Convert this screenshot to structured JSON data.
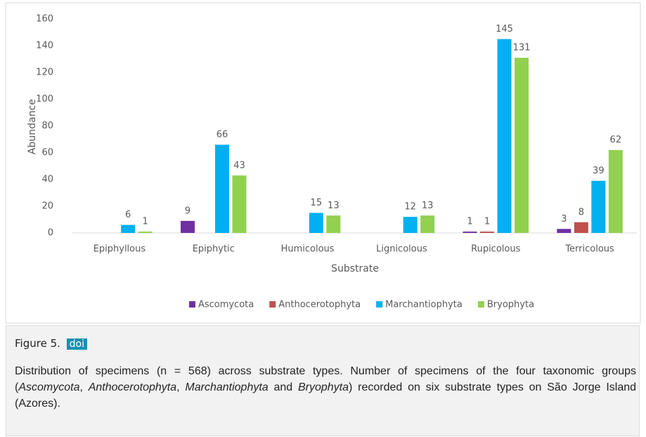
{
  "chart_data": {
    "type": "bar",
    "xlabel": "Substrate",
    "ylabel": "Abundance",
    "categories": [
      "Epiphyllous",
      "Epiphytic",
      "Humicolous",
      "Lignicolous",
      "Rupicolous",
      "Terricolous"
    ],
    "series": [
      {
        "name": "Ascomycota",
        "color": "#7030a0",
        "values": [
          null,
          9,
          null,
          null,
          1,
          3
        ]
      },
      {
        "name": "Anthocerotophyta",
        "color": "#c0504d",
        "values": [
          null,
          null,
          null,
          null,
          1,
          8
        ]
      },
      {
        "name": "Marchantiophyta",
        "color": "#00b0f0",
        "values": [
          6,
          66,
          15,
          12,
          145,
          39
        ]
      },
      {
        "name": "Bryophyta",
        "color": "#92d050",
        "values": [
          1,
          43,
          13,
          13,
          131,
          62
        ]
      }
    ],
    "ylim": [
      0,
      160
    ],
    "yticks": [
      0,
      20,
      40,
      60,
      80,
      100,
      120,
      140,
      160
    ],
    "grid": false,
    "legend": "bottom"
  },
  "figure": {
    "label": "Figure 5.",
    "link": "doi",
    "caption": [
      "Distribution of specimens (n = 568) across substrate types. Number of specimens of the four taxonomic groups (",
      "Ascomycota",
      ", ",
      "Anthocerotophyta",
      ", ",
      "Marchantiophyta",
      " and ",
      "Bryophyta",
      ") recorded on six substrate types on São Jorge Island (Azores)."
    ]
  }
}
